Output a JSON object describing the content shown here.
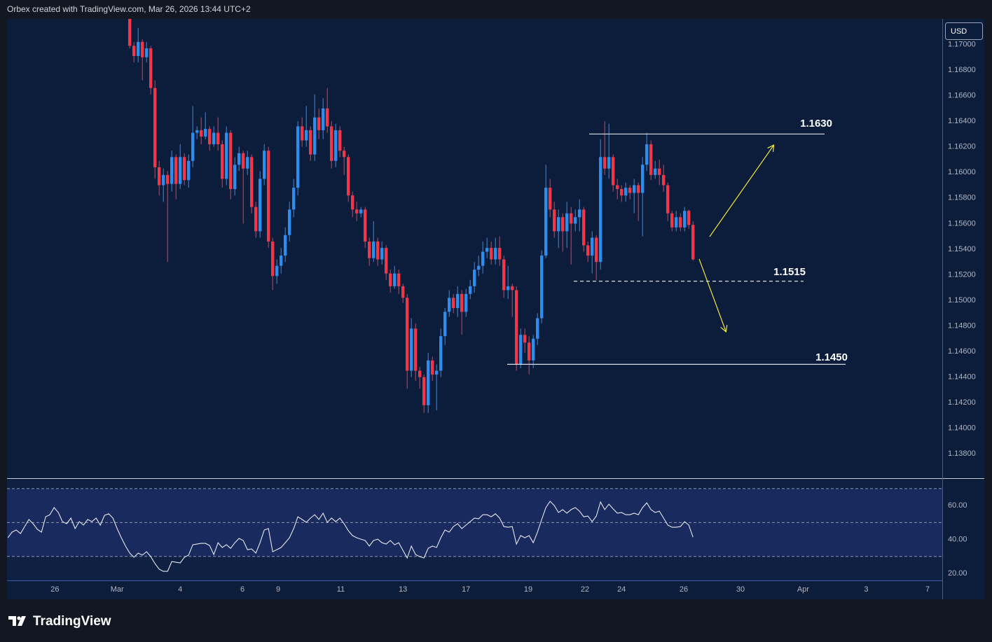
{
  "header": {
    "title": "Orbex created with TradingView.com, Mar 26, 2026 13:44 UTC+2"
  },
  "footer": {
    "logo": "TradingView"
  },
  "chart_data": [
    {
      "type": "candlestick",
      "currency": "USD",
      "up_color": "#2e8bf0",
      "down_color": "#f23645",
      "ylim": [
        1.1361,
        1.172
      ],
      "yticks": [
        {
          "value": 1.17,
          "label": "1.17000"
        },
        {
          "value": 1.168,
          "label": "1.16800"
        },
        {
          "value": 1.166,
          "label": "1.16600"
        },
        {
          "value": 1.164,
          "label": "1.16400"
        },
        {
          "value": 1.162,
          "label": "1.16200"
        },
        {
          "value": 1.16,
          "label": "1.16000"
        },
        {
          "value": 1.158,
          "label": "1.15800"
        },
        {
          "value": 1.156,
          "label": "1.15600"
        },
        {
          "value": 1.154,
          "label": "1.15400"
        },
        {
          "value": 1.152,
          "label": "1.15200"
        },
        {
          "value": 1.15,
          "label": "1.15000"
        },
        {
          "value": 1.148,
          "label": "1.14800"
        },
        {
          "value": 1.146,
          "label": "1.14600"
        },
        {
          "value": 1.144,
          "label": "1.14400"
        },
        {
          "value": 1.142,
          "label": "1.14200"
        },
        {
          "value": 1.14,
          "label": "1.14000"
        },
        {
          "value": 1.138,
          "label": "1.13800"
        }
      ],
      "xlim": [
        -0.2,
        222.3
      ],
      "xticks": [
        {
          "value": 11.2,
          "label": "26"
        },
        {
          "value": 26.0,
          "label": "Mar"
        },
        {
          "value": 41.0,
          "label": "4"
        },
        {
          "value": 55.8,
          "label": "6"
        },
        {
          "value": 64.3,
          "label": "9"
        },
        {
          "value": 79.2,
          "label": "11"
        },
        {
          "value": 94.0,
          "label": "13"
        },
        {
          "value": 109.0,
          "label": "17"
        },
        {
          "value": 123.8,
          "label": "19"
        },
        {
          "value": 137.3,
          "label": "22"
        },
        {
          "value": 146.0,
          "label": "24"
        },
        {
          "value": 160.8,
          "label": "26"
        },
        {
          "value": 174.3,
          "label": "30"
        },
        {
          "value": 189.2,
          "label": "Apr"
        },
        {
          "value": 204.2,
          "label": "3"
        },
        {
          "value": 218.8,
          "label": "7"
        }
      ],
      "levels": [
        {
          "value": 1.163,
          "label": "1.1630",
          "dashed": false
        },
        {
          "value": 1.1515,
          "label": "1.1515",
          "dashed": true
        },
        {
          "value": 1.145,
          "label": "1.1450",
          "dashed": false
        }
      ],
      "open": [
        null,
        null,
        null,
        null,
        null,
        null,
        null,
        null,
        null,
        null,
        null,
        null,
        null,
        null,
        null,
        null,
        null,
        null,
        null,
        null,
        null,
        null,
        null,
        null,
        null,
        null,
        null,
        null,
        null,
        1.172,
        1.1699,
        1.1691,
        1.1702,
        1.169,
        1.1697,
        1.1666,
        1.1604,
        1.159,
        1.1598,
        1.1591,
        1.1612,
        1.1591,
        1.1612,
        1.1594,
        1.1609,
        1.1631,
        1.1633,
        1.1628,
        1.1634,
        1.1622,
        1.1631,
        1.1622,
        1.1595,
        1.1631,
        1.1587,
        1.1606,
        1.1615,
        1.1603,
        1.1612,
        1.1573,
        1.1554,
        1.1595,
        1.1617,
        1.1546,
        1.1519,
        1.1527,
        1.1535,
        1.1551,
        1.1571,
        1.1588,
        1.1636,
        1.1625,
        1.1633,
        1.1614,
        1.1643,
        1.1633,
        1.165,
        1.1636,
        1.1609,
        1.1633,
        1.1617,
        1.1612,
        1.1582,
        1.1571,
        1.1568,
        1.1571,
        1.1546,
        1.1533,
        1.1546,
        1.1532,
        1.1541,
        1.1521,
        1.1511,
        1.1521,
        1.1511,
        1.1502,
        1.1445,
        1.1478,
        1.1445,
        1.144,
        1.1418,
        1.1453,
        1.1442,
        1.1445,
        1.1472,
        1.1491,
        1.1502,
        1.1494,
        1.1505,
        1.1491,
        1.1505,
        1.1511,
        1.1524,
        1.1527,
        1.1538,
        1.1541,
        1.1532,
        1.1541,
        1.1532,
        1.1508,
        1.1511,
        1.1508,
        1.145,
        1.1473,
        1.1467,
        1.1453,
        1.147,
        1.1486,
        1.1535,
        1.1588,
        1.1571,
        1.1554,
        1.1565,
        1.1554,
        1.1568,
        1.156,
        1.1565,
        1.1571,
        1.1543,
        1.1535,
        1.1549,
        1.153,
        1.1612,
        1.1603,
        1.1612,
        1.159,
        1.1587,
        1.1582,
        1.1588,
        1.1584,
        1.159,
        1.1584,
        1.1606,
        1.1622,
        1.1598,
        1.1603,
        1.1598,
        1.159,
        1.1568,
        1.1557,
        1.1565,
        1.1557,
        1.157,
        1.1559
      ],
      "high": [
        null,
        null,
        null,
        null,
        null,
        null,
        null,
        null,
        null,
        null,
        null,
        null,
        null,
        null,
        null,
        null,
        null,
        null,
        null,
        null,
        null,
        null,
        null,
        null,
        null,
        null,
        null,
        null,
        null,
        1.1724,
        1.1702,
        1.1713,
        1.1704,
        1.1702,
        1.1699,
        1.1672,
        1.1609,
        1.1603,
        1.1601,
        1.1617,
        1.1614,
        1.1622,
        1.1615,
        1.1614,
        1.1652,
        1.1636,
        1.1643,
        1.1647,
        1.1636,
        1.1636,
        1.1643,
        1.1625,
        1.1636,
        1.1633,
        1.1612,
        1.162,
        1.1617,
        1.1617,
        1.1614,
        1.1577,
        1.1601,
        1.1622,
        1.162,
        1.1549,
        1.1532,
        1.1541,
        1.1557,
        1.1577,
        1.1595,
        1.164,
        1.1643,
        1.1652,
        1.1636,
        1.1661,
        1.165,
        1.1658,
        1.1666,
        1.164,
        1.1638,
        1.1636,
        1.162,
        1.1614,
        1.1585,
        1.1577,
        1.1573,
        1.1573,
        1.1549,
        1.1562,
        1.1549,
        1.1546,
        1.1543,
        1.1524,
        1.1527,
        1.1524,
        1.1513,
        1.1505,
        1.1486,
        1.1482,
        1.1448,
        1.1442,
        1.1459,
        1.1456,
        1.145,
        1.1478,
        1.1494,
        1.1508,
        1.1505,
        1.1511,
        1.1508,
        1.1509,
        1.1516,
        1.153,
        1.1535,
        1.1546,
        1.1549,
        1.1546,
        1.1549,
        1.155,
        1.1535,
        1.1527,
        1.1513,
        1.1511,
        1.1478,
        1.1478,
        1.1472,
        1.1473,
        1.149,
        1.1539,
        1.1606,
        1.1595,
        1.1577,
        1.1571,
        1.1568,
        1.1577,
        1.1573,
        1.1571,
        1.1579,
        1.1573,
        1.1546,
        1.1554,
        1.1551,
        1.1626,
        1.164,
        1.1638,
        1.1614,
        1.1595,
        1.159,
        1.1592,
        1.159,
        1.1595,
        1.1592,
        1.1612,
        1.1631,
        1.1625,
        1.1609,
        1.161,
        1.1606,
        1.1592,
        1.157,
        1.157,
        1.1568,
        1.1573,
        1.1571,
        1.1562
      ],
      "low": [
        null,
        null,
        null,
        null,
        null,
        null,
        null,
        null,
        null,
        null,
        null,
        null,
        null,
        null,
        null,
        null,
        null,
        null,
        null,
        null,
        null,
        null,
        null,
        null,
        null,
        null,
        null,
        null,
        null,
        1.1697,
        1.1686,
        1.1686,
        1.1672,
        1.1686,
        1.1661,
        1.1595,
        1.1582,
        1.1577,
        1.153,
        1.1585,
        1.1579,
        1.1587,
        1.159,
        1.1588,
        1.1604,
        1.1626,
        1.1622,
        1.1626,
        1.1617,
        1.162,
        1.1617,
        1.1588,
        1.159,
        1.1579,
        1.1582,
        1.1601,
        1.156,
        1.1598,
        1.1568,
        1.1549,
        1.1549,
        1.159,
        1.1541,
        1.1508,
        1.1513,
        1.1521,
        1.153,
        1.1546,
        1.1565,
        1.1582,
        1.162,
        1.162,
        1.1609,
        1.1609,
        1.1626,
        1.1626,
        1.1631,
        1.1603,
        1.1604,
        1.1612,
        1.1598,
        1.1577,
        1.1565,
        1.1562,
        1.1565,
        1.1541,
        1.1527,
        1.153,
        1.1527,
        1.1528,
        1.1516,
        1.1506,
        1.1509,
        1.1505,
        1.1498,
        1.1431,
        1.144,
        1.1437,
        1.1431,
        1.1412,
        1.1412,
        1.1437,
        1.1414,
        1.144,
        1.1465,
        1.1487,
        1.149,
        1.1487,
        1.1473,
        1.1487,
        1.1501,
        1.1506,
        1.1519,
        1.1521,
        1.1533,
        1.1528,
        1.1528,
        1.1527,
        1.1502,
        1.1501,
        1.1487,
        1.1445,
        1.1447,
        1.1459,
        1.1442,
        1.1447,
        1.1465,
        1.1482,
        1.1533,
        1.1565,
        1.1549,
        1.1541,
        1.1538,
        1.1541,
        1.1528,
        1.1554,
        1.1554,
        1.1538,
        1.153,
        1.1521,
        1.1516,
        1.1524,
        1.1598,
        1.1595,
        1.1585,
        1.1579,
        1.1577,
        1.1577,
        1.1579,
        1.1568,
        1.1562,
        1.155,
        1.1601,
        1.1594,
        1.1595,
        1.159,
        1.1585,
        1.1562,
        1.1554,
        1.1554,
        1.1554,
        1.1554,
        1.1556,
        1.1531
      ],
      "close": [
        null,
        null,
        null,
        null,
        null,
        null,
        null,
        null,
        null,
        null,
        null,
        null,
        null,
        null,
        null,
        null,
        null,
        null,
        null,
        null,
        null,
        null,
        null,
        null,
        null,
        null,
        null,
        null,
        null,
        1.1699,
        1.1691,
        1.1702,
        1.169,
        1.1697,
        1.1666,
        1.1604,
        1.159,
        1.1598,
        1.1591,
        1.1612,
        1.1591,
        1.1612,
        1.1594,
        1.1609,
        1.1631,
        1.1633,
        1.1628,
        1.1634,
        1.1622,
        1.1631,
        1.1622,
        1.1595,
        1.1631,
        1.1587,
        1.1606,
        1.1615,
        1.1603,
        1.1612,
        1.1573,
        1.1554,
        1.1595,
        1.1617,
        1.1546,
        1.1519,
        1.1527,
        1.1535,
        1.1551,
        1.1571,
        1.1588,
        1.1636,
        1.1625,
        1.1633,
        1.1614,
        1.1643,
        1.1633,
        1.165,
        1.1636,
        1.1609,
        1.1633,
        1.1617,
        1.1612,
        1.1582,
        1.1571,
        1.1568,
        1.1571,
        1.1546,
        1.1533,
        1.1546,
        1.1532,
        1.1541,
        1.1521,
        1.1511,
        1.1521,
        1.1511,
        1.1502,
        1.1445,
        1.1478,
        1.1445,
        1.144,
        1.1418,
        1.1453,
        1.1442,
        1.1445,
        1.1472,
        1.1491,
        1.1502,
        1.1494,
        1.1505,
        1.1491,
        1.1505,
        1.1511,
        1.1524,
        1.1527,
        1.1538,
        1.1541,
        1.1532,
        1.1541,
        1.1532,
        1.1508,
        1.1511,
        1.1508,
        1.145,
        1.1473,
        1.1467,
        1.1453,
        1.147,
        1.1486,
        1.1535,
        1.1588,
        1.1571,
        1.1554,
        1.1565,
        1.1554,
        1.1568,
        1.156,
        1.1565,
        1.1571,
        1.1543,
        1.1535,
        1.1549,
        1.153,
        1.1612,
        1.1603,
        1.1612,
        1.159,
        1.1587,
        1.1582,
        1.1588,
        1.1584,
        1.159,
        1.1584,
        1.1606,
        1.1622,
        1.1598,
        1.1603,
        1.1598,
        1.159,
        1.1568,
        1.1557,
        1.1565,
        1.1557,
        1.157,
        1.1559,
        1.1532
      ]
    },
    {
      "type": "line",
      "color": "#e6e8ee",
      "ylim": [
        15.9,
        75.7
      ],
      "yticks": [
        {
          "value": 60,
          "label": "60.00"
        },
        {
          "value": 40,
          "label": "40.00"
        },
        {
          "value": 20,
          "label": "20.00"
        }
      ],
      "levels": [
        70,
        50,
        30
      ],
      "values": [
        41.0,
        44.3,
        45.6,
        43.5,
        47.6,
        51.8,
        49.3,
        46.0,
        44.3,
        53.4,
        54.6,
        58.8,
        55.9,
        50.5,
        49.3,
        52.6,
        46.4,
        50.5,
        48.5,
        51.8,
        50.5,
        52.6,
        48.5,
        54.2,
        55.1,
        52.6,
        46.4,
        41.0,
        36.1,
        32.0,
        29.5,
        32.0,
        30.8,
        32.8,
        29.9,
        25.8,
        22.5,
        21.2,
        21.2,
        27.0,
        26.6,
        26.2,
        29.5,
        30.8,
        36.9,
        37.3,
        37.7,
        37.7,
        36.5,
        31.1,
        38.1,
        35.3,
        36.9,
        34.8,
        38.1,
        40.6,
        39.4,
        34.0,
        34.4,
        32.0,
        38.1,
        45.6,
        46.4,
        32.8,
        34.0,
        35.3,
        38.1,
        41.0,
        46.4,
        53.4,
        51.8,
        50.1,
        52.6,
        54.6,
        51.8,
        55.5,
        50.1,
        52.6,
        50.5,
        52.6,
        49.3,
        45.2,
        42.3,
        41.0,
        40.2,
        39.4,
        36.1,
        39.4,
        40.2,
        38.1,
        37.3,
        39.4,
        36.9,
        38.1,
        33.6,
        29.1,
        36.1,
        31.1,
        29.9,
        29.1,
        34.8,
        36.1,
        35.3,
        41.0,
        45.6,
        44.3,
        47.6,
        49.3,
        46.4,
        48.5,
        50.5,
        52.6,
        52.2,
        54.6,
        54.6,
        53.4,
        55.1,
        52.6,
        47.6,
        47.2,
        47.6,
        37.3,
        42.3,
        41.0,
        42.3,
        38.1,
        44.3,
        51.8,
        58.8,
        62.5,
        60.0,
        55.9,
        57.6,
        55.5,
        57.6,
        58.8,
        56.7,
        53.4,
        53.8,
        50.5,
        53.8,
        62.1,
        57.6,
        60.8,
        58.0,
        55.5,
        55.9,
        54.6,
        54.6,
        55.5,
        54.6,
        58.8,
        61.6,
        57.6,
        55.9,
        56.7,
        52.6,
        48.5,
        47.2,
        47.2,
        47.6,
        50.5,
        48.5,
        41.4
      ]
    }
  ]
}
